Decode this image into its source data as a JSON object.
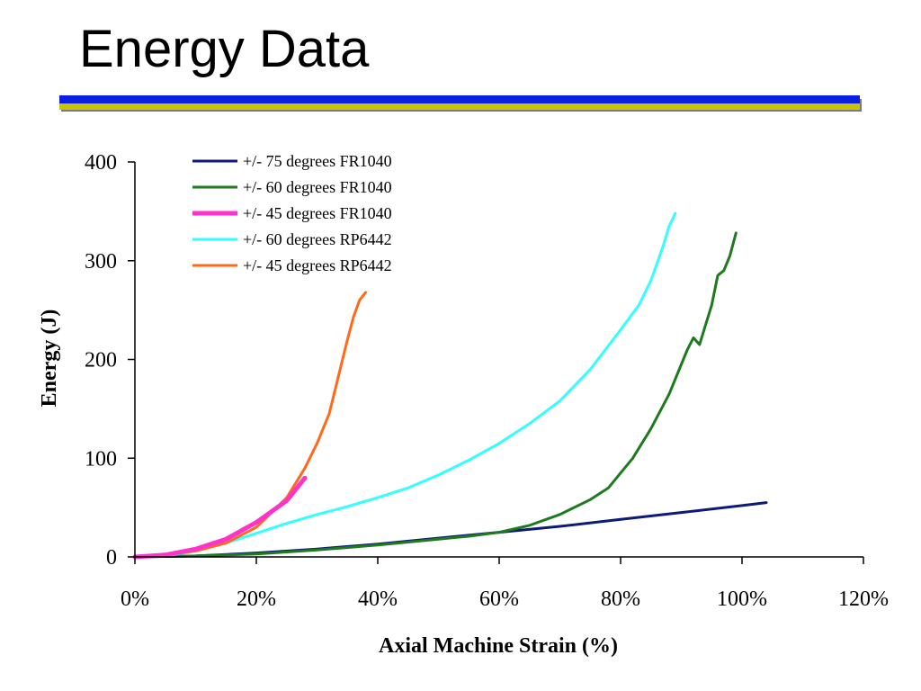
{
  "slide": {
    "title": "Energy Data",
    "bar_colors": {
      "top": "#0a1fe0",
      "bottom": "#c8c400"
    }
  },
  "chart_data": {
    "type": "line",
    "title": "",
    "xlabel": "Axial Machine Strain (%)",
    "ylabel": "Energy (J)",
    "xlim": [
      0,
      120
    ],
    "ylim": [
      0,
      400
    ],
    "x_unit": "%",
    "x_ticks": [
      0,
      20,
      40,
      60,
      80,
      100,
      120
    ],
    "y_ticks": [
      0,
      100,
      200,
      300,
      400
    ],
    "grid": false,
    "legend_position": "top-left",
    "series": [
      {
        "name": "+/- 75 degrees FR1040",
        "color": "#0d1a7a",
        "x": [
          0,
          10,
          20,
          30,
          40,
          50,
          60,
          70,
          80,
          90,
          100,
          104
        ],
        "y": [
          0,
          1,
          4,
          8,
          13,
          19,
          25,
          31,
          38,
          45,
          52,
          55
        ]
      },
      {
        "name": "+/- 60 degrees FR1040",
        "color": "#1e7a1e",
        "x": [
          0,
          10,
          20,
          30,
          40,
          50,
          55,
          60,
          65,
          70,
          75,
          78,
          80,
          82,
          85,
          88,
          90,
          91,
          92,
          93,
          94,
          95,
          96,
          97,
          98,
          99
        ],
        "y": [
          0,
          1,
          3,
          7,
          12,
          18,
          21,
          25,
          32,
          43,
          58,
          70,
          85,
          100,
          130,
          165,
          195,
          210,
          222,
          215,
          235,
          255,
          285,
          290,
          305,
          328
        ]
      },
      {
        "name": "+/- 45 degrees FR1040",
        "color": "#ff33cc",
        "x": [
          0,
          5,
          10,
          15,
          20,
          25,
          28
        ],
        "y": [
          0,
          2,
          8,
          18,
          35,
          57,
          80
        ]
      },
      {
        "name": "+/- 60 degrees RP6442",
        "color": "#33ffff",
        "x": [
          0,
          5,
          10,
          15,
          20,
          25,
          30,
          35,
          40,
          45,
          50,
          55,
          60,
          65,
          70,
          75,
          80,
          83,
          85,
          87,
          88,
          89
        ],
        "y": [
          0,
          1,
          6,
          14,
          24,
          34,
          43,
          51,
          60,
          70,
          83,
          98,
          115,
          135,
          158,
          190,
          230,
          255,
          280,
          315,
          335,
          348
        ]
      },
      {
        "name": "+/- 45 degrees RP6442",
        "color": "#ff6a1a",
        "x": [
          0,
          5,
          10,
          15,
          20,
          25,
          28,
          30,
          32,
          33,
          34,
          35,
          36,
          37,
          38
        ],
        "y": [
          0,
          2,
          6,
          14,
          30,
          60,
          90,
          115,
          145,
          170,
          195,
          220,
          243,
          260,
          268
        ]
      }
    ]
  }
}
